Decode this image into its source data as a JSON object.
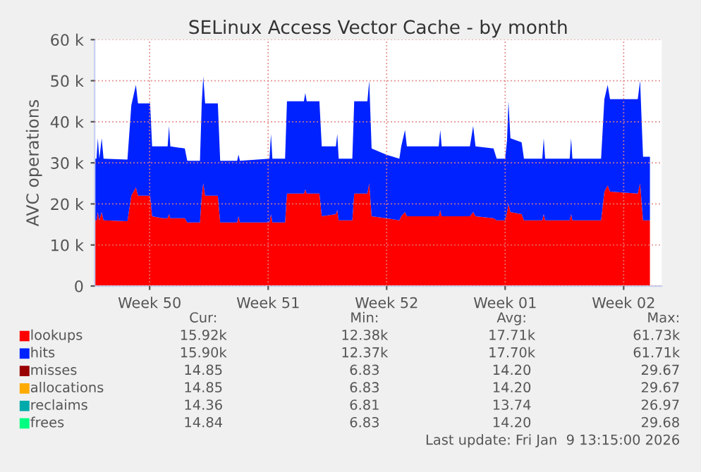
{
  "chart_data": {
    "type": "area",
    "stacked": true,
    "title": "SELinux Access Vector Cache - by month",
    "ylabel": "AVC operations",
    "x": [
      "2025-12-07T18:00",
      "2025-12-07T20:40",
      "2025-12-07T22:30",
      "2025-12-08T00:40",
      "2025-12-08T04:00",
      "2025-12-08T06:40",
      "2025-12-09T16:30",
      "2025-12-09T22:00",
      "2025-12-10T04:30",
      "2025-12-10T07:30",
      "2025-12-11T00:40",
      "2025-12-11T03:30",
      "2025-12-11T18:40",
      "2025-12-12T01:30",
      "2025-12-12T03:30",
      "2025-12-12T05:20",
      "2025-12-13T01:50",
      "2025-12-13T05:20",
      "2025-12-13T23:20",
      "2025-12-14T01:50",
      "2025-12-14T04:00",
      "2025-12-14T06:40",
      "2025-12-15T00:40",
      "2025-12-15T04:00",
      "2025-12-16T04:00",
      "2025-12-16T06:00",
      "2025-12-16T08:00",
      "2025-12-18T01:50",
      "2025-12-18T04:00",
      "2025-12-18T06:00",
      "2025-12-19T00:00",
      "2025-12-19T02:40",
      "2025-12-20T02:40",
      "2025-12-20T04:40",
      "2025-12-20T06:40",
      "2025-12-21T00:40",
      "2025-12-21T04:00",
      "2025-12-22T00:00",
      "2025-12-22T02:00",
      "2025-12-22T04:00",
      "2025-12-22T23:20",
      "2025-12-23T02:00",
      "2025-12-23T20:40",
      "2025-12-23T23:20",
      "2025-12-24T02:40",
      "2025-12-24T23:20",
      "2025-12-25T18:00",
      "2025-12-25T20:40",
      "2025-12-26T02:00",
      "2025-12-26T04:40",
      "2025-12-28T01:50",
      "2025-12-28T04:00",
      "2025-12-28T06:00",
      "2025-12-29T22:00",
      "2025-12-30T02:40",
      "2025-12-30T06:00",
      "2025-12-31T07:30",
      "2025-12-31T12:00",
      "2026-01-01T00:00",
      "2026-01-01T02:40",
      "2026-01-01T04:40",
      "2026-01-01T07:30",
      "2026-01-01T23:20",
      "2026-01-02T02:40",
      "2026-01-03T04:40",
      "2026-01-03T06:40",
      "2026-01-03T08:40",
      "2026-01-04T19:30",
      "2026-01-04T21:30",
      "2026-01-04T23:20",
      "2026-01-06T16:00",
      "2026-01-06T20:40",
      "2026-01-07T01:20",
      "2026-01-07T04:40",
      "2026-01-08T20:00",
      "2026-01-08T23:20",
      "2026-01-09T03:30",
      "2026-01-09T13:15"
    ],
    "series": [
      {
        "name": "lookups",
        "color": "#ff0000",
        "values": [
          16,
          16,
          18,
          16,
          18,
          16,
          15.8,
          22,
          24,
          22,
          22,
          17,
          16.5,
          16.5,
          17.5,
          16.5,
          16.5,
          15.5,
          15.5,
          22,
          25,
          22,
          22,
          15.5,
          15.5,
          17,
          15.5,
          15.5,
          17.5,
          15.5,
          15.5,
          22.5,
          22.5,
          23.5,
          22.5,
          22.5,
          17,
          17.5,
          18.5,
          16,
          16,
          22.5,
          22.5,
          25,
          17,
          16.5,
          16,
          17,
          18,
          17,
          17,
          18.5,
          17,
          17,
          18,
          17,
          16.5,
          16,
          16,
          18,
          20,
          18,
          17.5,
          16,
          16,
          17.5,
          16,
          16,
          17.5,
          16,
          16,
          23,
          24.5,
          23,
          22.5,
          25,
          16,
          16
        ]
      },
      {
        "name": "hits",
        "color": "#0022ff",
        "values": [
          15,
          15,
          18,
          15,
          18,
          15,
          15,
          22,
          25,
          22.5,
          22.5,
          17,
          17.5,
          17.5,
          21.5,
          17.5,
          17,
          15,
          15,
          22.5,
          26,
          22.5,
          22.5,
          15,
          15,
          15,
          15,
          15.5,
          19.5,
          15.5,
          15.5,
          22.5,
          22.5,
          23.5,
          22.5,
          22.5,
          17,
          16.5,
          18.5,
          15,
          15,
          22.5,
          22.5,
          25,
          16.5,
          15.5,
          15,
          17,
          20,
          17,
          17,
          19.5,
          17,
          17,
          21,
          17,
          17,
          15,
          15,
          17.5,
          25,
          18,
          17.5,
          15,
          15,
          18.5,
          15,
          15,
          18.5,
          15,
          15,
          22.5,
          24.5,
          22.5,
          23,
          25,
          15.5,
          15.5
        ]
      },
      {
        "name": "misses",
        "color": "#990000",
        "values": [
          null,
          null,
          null,
          null,
          null,
          null,
          null,
          null,
          null,
          null,
          null,
          null,
          null,
          null,
          null,
          null,
          null,
          null,
          null,
          null,
          null,
          null,
          null,
          null,
          null,
          null,
          null,
          null,
          null,
          null,
          null,
          null,
          null,
          null,
          null,
          null,
          null,
          null,
          null,
          null,
          null,
          null,
          null,
          null,
          null,
          null,
          null,
          null,
          null,
          null,
          null,
          null,
          null,
          null,
          null,
          null,
          null,
          null,
          null,
          null,
          null,
          null,
          null,
          null,
          null,
          null,
          null,
          null,
          null,
          null,
          null,
          null,
          null,
          null,
          null,
          null,
          null,
          null
        ]
      },
      {
        "name": "allocations",
        "color": "#ffaa00",
        "values": [
          null,
          null,
          null,
          null,
          null,
          null,
          null,
          null,
          null,
          null,
          null,
          null,
          null,
          null,
          null,
          null,
          null,
          null,
          null,
          null,
          null,
          null,
          null,
          null,
          null,
          null,
          null,
          null,
          null,
          null,
          null,
          null,
          null,
          null,
          null,
          null,
          null,
          null,
          null,
          null,
          null,
          null,
          null,
          null,
          null,
          null,
          null,
          null,
          null,
          null,
          null,
          null,
          null,
          null,
          null,
          null,
          null,
          null,
          null,
          null,
          null,
          null,
          null,
          null,
          null,
          null,
          null,
          null,
          null,
          null,
          null,
          null,
          null,
          null,
          null,
          null,
          null,
          null
        ]
      },
      {
        "name": "reclaims",
        "color": "#00aaaa",
        "values": [
          null,
          null,
          null,
          null,
          null,
          null,
          null,
          null,
          null,
          null,
          null,
          null,
          null,
          null,
          null,
          null,
          null,
          null,
          null,
          null,
          null,
          null,
          null,
          null,
          null,
          null,
          null,
          null,
          null,
          null,
          null,
          null,
          null,
          null,
          null,
          null,
          null,
          null,
          null,
          null,
          null,
          null,
          null,
          null,
          null,
          null,
          null,
          null,
          null,
          null,
          null,
          null,
          null,
          null,
          null,
          null,
          null,
          null,
          null,
          null,
          null,
          null,
          null,
          null,
          null,
          null,
          null,
          null,
          null,
          null,
          null,
          null,
          null,
          null,
          null,
          null,
          null,
          null
        ]
      },
      {
        "name": "frees",
        "color": "#00ff80",
        "values": [
          null,
          null,
          null,
          null,
          null,
          null,
          null,
          null,
          null,
          null,
          null,
          null,
          null,
          null,
          null,
          null,
          null,
          null,
          null,
          null,
          null,
          null,
          null,
          null,
          null,
          null,
          null,
          null,
          null,
          null,
          null,
          null,
          null,
          null,
          null,
          null,
          null,
          null,
          null,
          null,
          null,
          null,
          null,
          null,
          null,
          null,
          null,
          null,
          null,
          null,
          null,
          null,
          null,
          null,
          null,
          null,
          null,
          null,
          null,
          null,
          null,
          null,
          null,
          null,
          null,
          null,
          null,
          null,
          null,
          null,
          null,
          null,
          null,
          null,
          null,
          null,
          null,
          null
        ]
      }
    ],
    "xlim": [
      "2025-12-07T18:00",
      "2026-01-10T06:00"
    ],
    "xticks": [
      {
        "value": "2025-12-11",
        "label": "Week 50"
      },
      {
        "value": "2025-12-18",
        "label": "Week 51"
      },
      {
        "value": "2025-12-25",
        "label": "Week 52"
      },
      {
        "value": "2026-01-01",
        "label": "Week 01"
      },
      {
        "value": "2026-01-08",
        "label": "Week 02"
      }
    ],
    "ylim": [
      0,
      60
    ],
    "yticks": [
      {
        "value": 0,
        "label": "0"
      },
      {
        "value": 10,
        "label": "10 k"
      },
      {
        "value": 20,
        "label": "20 k"
      },
      {
        "value": 30,
        "label": "30 k"
      },
      {
        "value": 40,
        "label": "40 k"
      },
      {
        "value": 50,
        "label": "50 k"
      },
      {
        "value": 60,
        "label": "60 k"
      }
    ],
    "grid": true,
    "legend": "bottom",
    "annotations": [
      "Cur:",
      "Min:",
      "Avg:",
      "Max:",
      "15.92k",
      "12.38k",
      "17.71k",
      "61.73k",
      "15.90k",
      "12.37k",
      "17.70k",
      "61.71k",
      "14.85",
      "6.83",
      "14.20",
      "29.67",
      "14.85",
      "6.83",
      "14.20",
      "29.67",
      "14.36",
      "6.81",
      "13.74",
      "26.97",
      "14.84",
      "6.83",
      "14.20",
      "29.68",
      "Last update: Fri Jan  9 13:15:00 2026"
    ]
  }
}
